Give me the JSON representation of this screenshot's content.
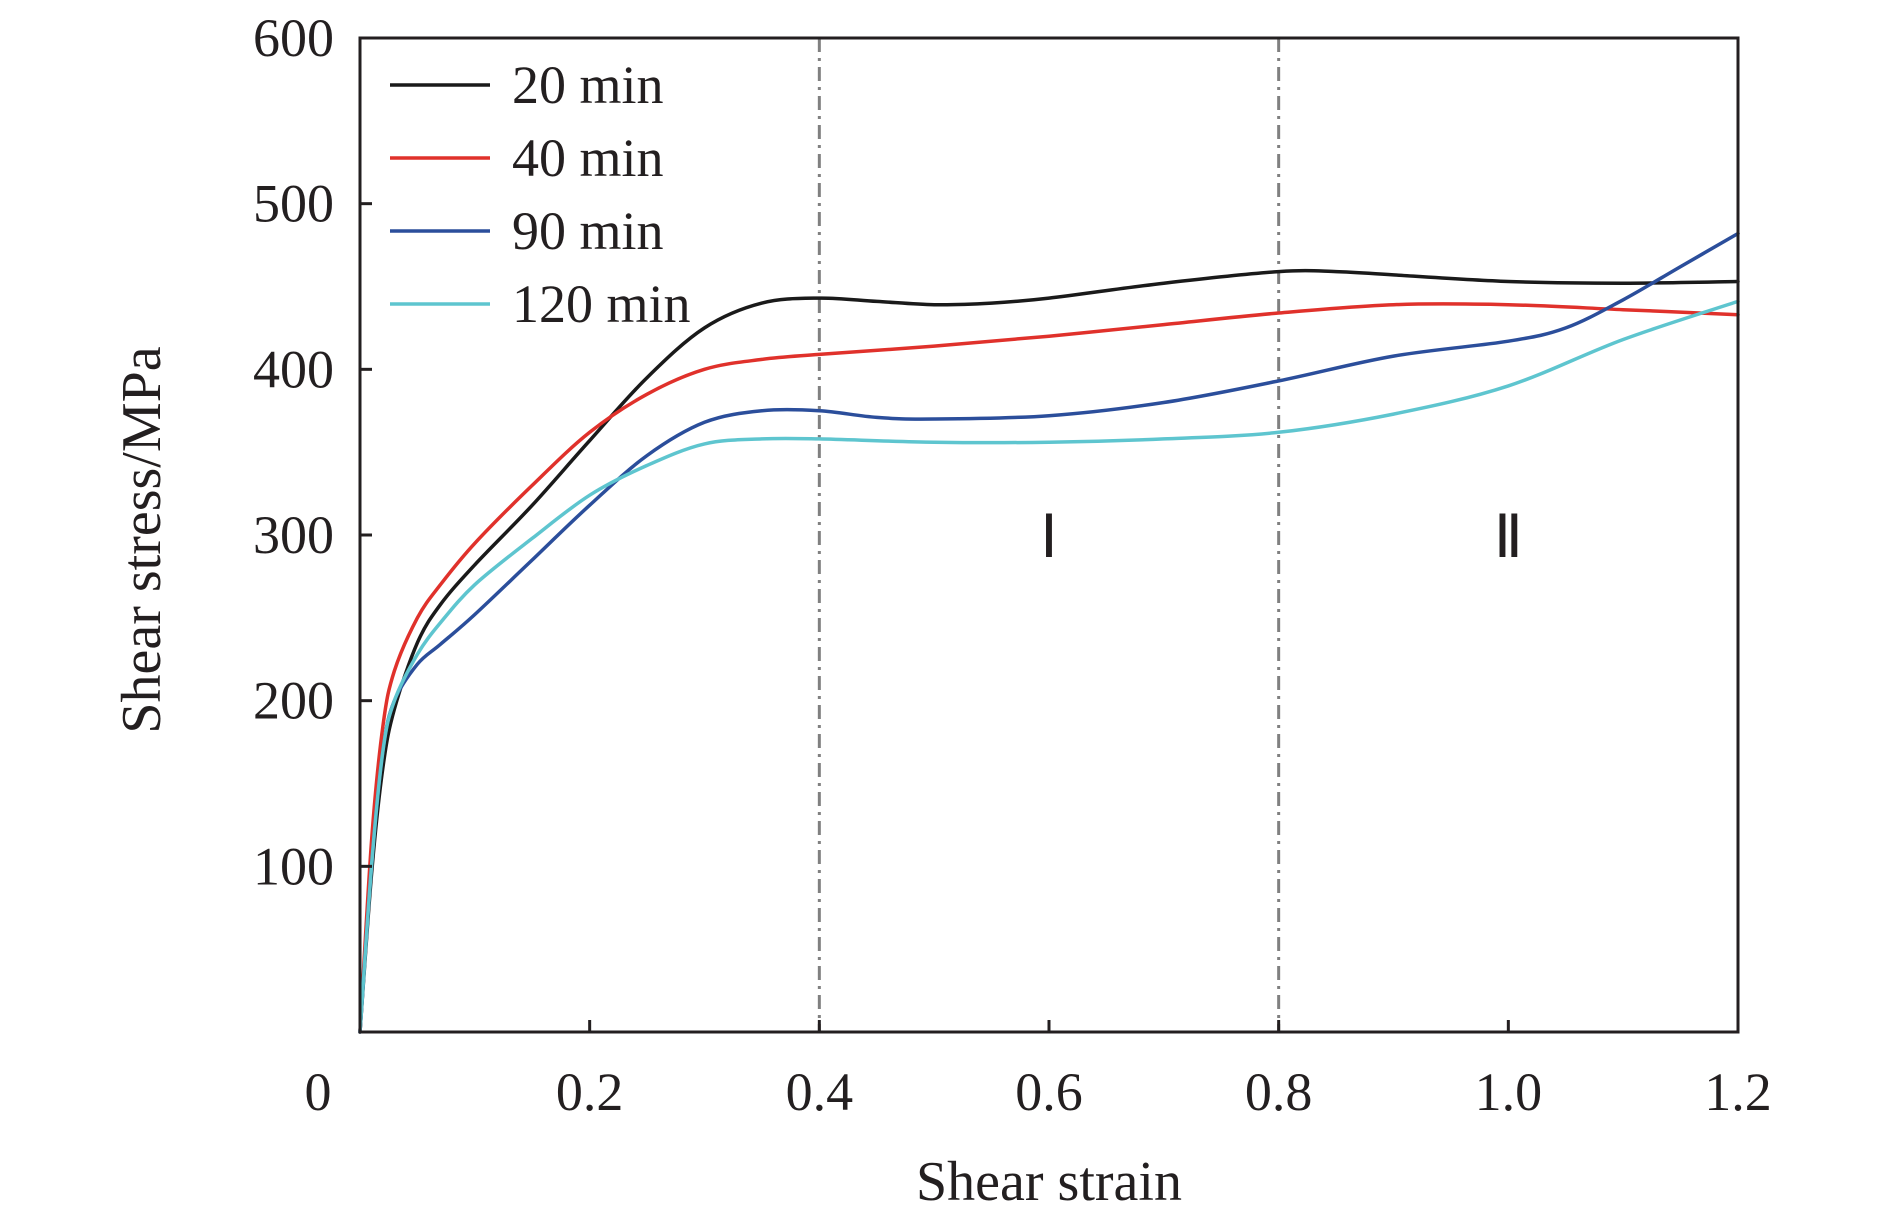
{
  "chart_data": {
    "type": "line",
    "xlabel": "Shear strain",
    "ylabel": "Shear stress/MPa",
    "xlim": [
      0,
      1.2
    ],
    "ylim": [
      0,
      600
    ],
    "x_ticks": [
      0,
      0.2,
      0.4,
      0.6,
      0.8,
      1.0,
      1.2
    ],
    "x_tick_labels": [
      "0",
      "0.2",
      "0.4",
      "0.6",
      "0.8",
      "1.0",
      "1.2"
    ],
    "y_ticks": [
      100,
      200,
      300,
      400,
      500,
      600
    ],
    "y_tick_labels": [
      "100",
      "200",
      "300",
      "400",
      "500",
      "600"
    ],
    "grid": false,
    "legend_position": "top-left",
    "reference_lines": [
      {
        "x": 0.4,
        "style": "dash-dot",
        "color": "#808080"
      },
      {
        "x": 0.8,
        "style": "dash-dot",
        "color": "#808080"
      }
    ],
    "region_labels": [
      {
        "text": "Ⅰ",
        "x": 0.6,
        "y": 300
      },
      {
        "text": "Ⅱ",
        "x": 1.0,
        "y": 300
      }
    ],
    "series": [
      {
        "name": "20 min",
        "color": "#1a1a1a",
        "points": [
          [
            0,
            0
          ],
          [
            0.01,
            95
          ],
          [
            0.02,
            160
          ],
          [
            0.03,
            195
          ],
          [
            0.05,
            235
          ],
          [
            0.07,
            258
          ],
          [
            0.1,
            282
          ],
          [
            0.15,
            318
          ],
          [
            0.2,
            357
          ],
          [
            0.25,
            395
          ],
          [
            0.3,
            425
          ],
          [
            0.35,
            440
          ],
          [
            0.4,
            443
          ],
          [
            0.45,
            441
          ],
          [
            0.5,
            439
          ],
          [
            0.55,
            440
          ],
          [
            0.6,
            443
          ],
          [
            0.7,
            452
          ],
          [
            0.8,
            459
          ],
          [
            0.85,
            459
          ],
          [
            0.9,
            457
          ],
          [
            1.0,
            453
          ],
          [
            1.1,
            452
          ],
          [
            1.2,
            453
          ]
        ]
      },
      {
        "name": "40 min",
        "color": "#e0312b",
        "points": [
          [
            0,
            0
          ],
          [
            0.01,
            115
          ],
          [
            0.02,
            185
          ],
          [
            0.03,
            218
          ],
          [
            0.05,
            250
          ],
          [
            0.07,
            270
          ],
          [
            0.1,
            295
          ],
          [
            0.15,
            330
          ],
          [
            0.2,
            362
          ],
          [
            0.25,
            385
          ],
          [
            0.3,
            400
          ],
          [
            0.35,
            406
          ],
          [
            0.4,
            409
          ],
          [
            0.5,
            414
          ],
          [
            0.6,
            420
          ],
          [
            0.7,
            427
          ],
          [
            0.8,
            434
          ],
          [
            0.9,
            439
          ],
          [
            1.0,
            439
          ],
          [
            1.1,
            436
          ],
          [
            1.2,
            433
          ]
        ]
      },
      {
        "name": "90 min",
        "color": "#2b4e9b",
        "points": [
          [
            0,
            0
          ],
          [
            0.01,
            100
          ],
          [
            0.02,
            170
          ],
          [
            0.03,
            200
          ],
          [
            0.05,
            222
          ],
          [
            0.07,
            234
          ],
          [
            0.1,
            252
          ],
          [
            0.15,
            285
          ],
          [
            0.2,
            318
          ],
          [
            0.25,
            348
          ],
          [
            0.3,
            368
          ],
          [
            0.35,
            375
          ],
          [
            0.4,
            375
          ],
          [
            0.45,
            371
          ],
          [
            0.5,
            370
          ],
          [
            0.6,
            372
          ],
          [
            0.7,
            380
          ],
          [
            0.8,
            393
          ],
          [
            0.9,
            408
          ],
          [
            1.0,
            417
          ],
          [
            1.05,
            425
          ],
          [
            1.1,
            442
          ],
          [
            1.15,
            462
          ],
          [
            1.2,
            482
          ]
        ]
      },
      {
        "name": "120 min",
        "color": "#5ec5cf",
        "points": [
          [
            0,
            0
          ],
          [
            0.01,
            100
          ],
          [
            0.02,
            170
          ],
          [
            0.03,
            200
          ],
          [
            0.05,
            228
          ],
          [
            0.07,
            247
          ],
          [
            0.1,
            270
          ],
          [
            0.15,
            298
          ],
          [
            0.2,
            324
          ],
          [
            0.25,
            342
          ],
          [
            0.3,
            355
          ],
          [
            0.35,
            358
          ],
          [
            0.4,
            358
          ],
          [
            0.5,
            356
          ],
          [
            0.6,
            356
          ],
          [
            0.7,
            358
          ],
          [
            0.8,
            362
          ],
          [
            0.9,
            373
          ],
          [
            1.0,
            390
          ],
          [
            1.1,
            418
          ],
          [
            1.2,
            441
          ]
        ]
      }
    ]
  }
}
